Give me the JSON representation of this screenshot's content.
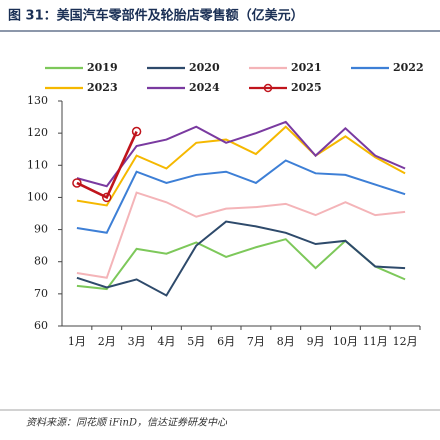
{
  "chart_data": {
    "type": "line",
    "title": "图 31：美国汽车零部件及轮胎店零售额（亿美元）",
    "source": "资料来源：同花顺 iFinD，信达证券研发中心",
    "categories": [
      "1月",
      "2月",
      "3月",
      "4月",
      "5月",
      "6月",
      "7月",
      "8月",
      "9月",
      "10月",
      "11月",
      "12月"
    ],
    "series": [
      {
        "name": "2019",
        "color": "#7dc85a",
        "values": [
          72.5,
          71.5,
          84,
          82.5,
          86,
          81.5,
          84.5,
          87,
          78,
          86.5,
          78.5,
          74.5
        ]
      },
      {
        "name": "2020",
        "color": "#2e4a6b",
        "values": [
          75,
          72,
          74.5,
          69.5,
          85,
          92.5,
          91,
          89,
          85.5,
          86.5,
          78.5,
          78
        ]
      },
      {
        "name": "2021",
        "color": "#f4b4b8",
        "values": [
          76.5,
          75,
          101.5,
          98.5,
          94,
          96.5,
          97,
          98,
          94.5,
          98.5,
          94.5,
          95.5
        ]
      },
      {
        "name": "2022",
        "color": "#3d7fd6",
        "values": [
          90.5,
          89,
          108,
          104.5,
          107,
          108,
          104.5,
          111.5,
          107.5,
          107,
          104,
          101
        ]
      },
      {
        "name": "2023",
        "color": "#f5b800",
        "values": [
          99,
          97.5,
          113,
          109,
          117,
          118,
          113.5,
          122,
          113,
          119,
          112.5,
          107.5
        ]
      },
      {
        "name": "2024",
        "color": "#7a3aa0",
        "values": [
          106,
          103.5,
          116,
          118,
          122,
          117,
          120,
          123.5,
          113,
          121.5,
          113,
          109
        ]
      },
      {
        "name": "2025",
        "color": "#c0141c",
        "markers": true,
        "values": [
          104.5,
          100,
          120.5,
          null,
          null,
          null,
          null,
          null,
          null,
          null,
          null,
          null
        ]
      }
    ],
    "ylim": [
      60,
      130
    ],
    "yticks": [
      60,
      70,
      80,
      90,
      100,
      110,
      120,
      130
    ],
    "grid": false
  }
}
